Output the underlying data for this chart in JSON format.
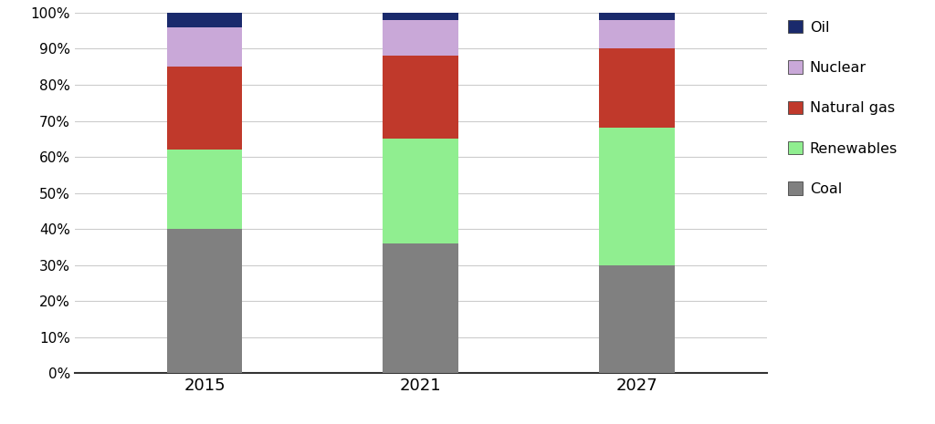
{
  "years": [
    "2015",
    "2021",
    "2027"
  ],
  "categories": [
    "Coal",
    "Renewables",
    "Natural gas",
    "Nuclear",
    "Oil"
  ],
  "values": {
    "Coal": [
      40,
      36,
      30
    ],
    "Renewables": [
      22,
      29,
      38
    ],
    "Natural gas": [
      23,
      23,
      22
    ],
    "Nuclear": [
      11,
      10,
      8
    ],
    "Oil": [
      4,
      2,
      2
    ]
  },
  "colors": {
    "Coal": "#808080",
    "Renewables": "#90ee90",
    "Natural gas": "#c0392b",
    "Nuclear": "#c9a8d8",
    "Oil": "#1a2a6c"
  },
  "ylim": [
    0,
    100
  ],
  "ytick_labels": [
    "0%",
    "10%",
    "20%",
    "30%",
    "40%",
    "50%",
    "60%",
    "70%",
    "80%",
    "90%",
    "100%"
  ],
  "ytick_values": [
    0,
    10,
    20,
    30,
    40,
    50,
    60,
    70,
    80,
    90,
    100
  ],
  "bar_width": 0.35,
  "background_color": "#ffffff",
  "grid_color": "#cccccc",
  "legend_order": [
    "Oil",
    "Nuclear",
    "Natural gas",
    "Renewables",
    "Coal"
  ]
}
